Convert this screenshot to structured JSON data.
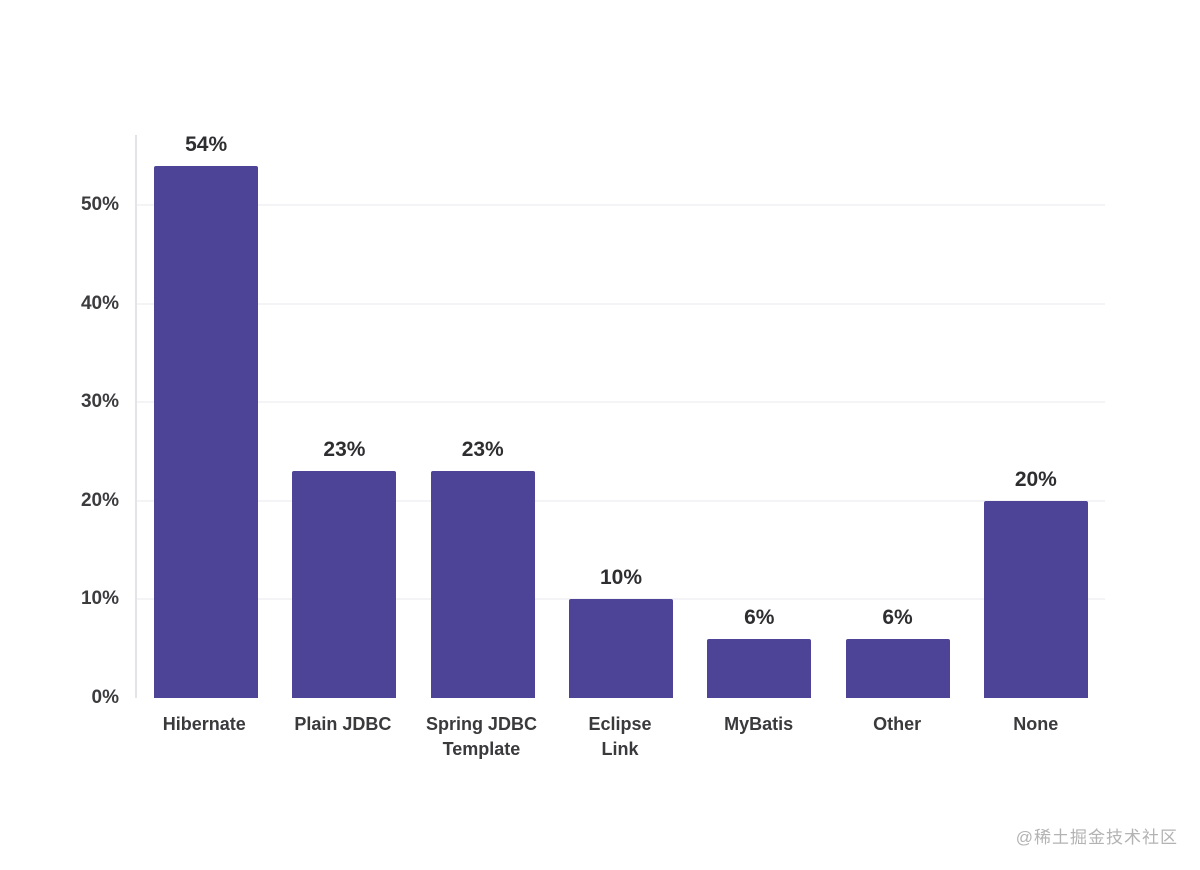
{
  "chart_data": {
    "type": "bar",
    "categories": [
      "Hibernate",
      "Plain JDBC",
      "Spring JDBC\nTemplate",
      "Eclipse\nLink",
      "MyBatis",
      "Other",
      "None"
    ],
    "values": [
      54,
      23,
      23,
      10,
      6,
      6,
      20
    ],
    "value_labels": [
      "54%",
      "23%",
      "23%",
      "10%",
      "6%",
      "6%",
      "20%"
    ],
    "title": "",
    "xlabel": "",
    "ylabel": "",
    "ylim": [
      0,
      57.1
    ],
    "yticks": [
      0,
      10,
      20,
      30,
      40,
      50
    ],
    "ytick_labels": [
      "0%",
      "10%",
      "20%",
      "30%",
      "40%",
      "50%"
    ],
    "bar_color": "#4d4397",
    "grid": true,
    "legend": false,
    "background": "#ffffff"
  },
  "watermark": "@稀土掘金技术社区"
}
